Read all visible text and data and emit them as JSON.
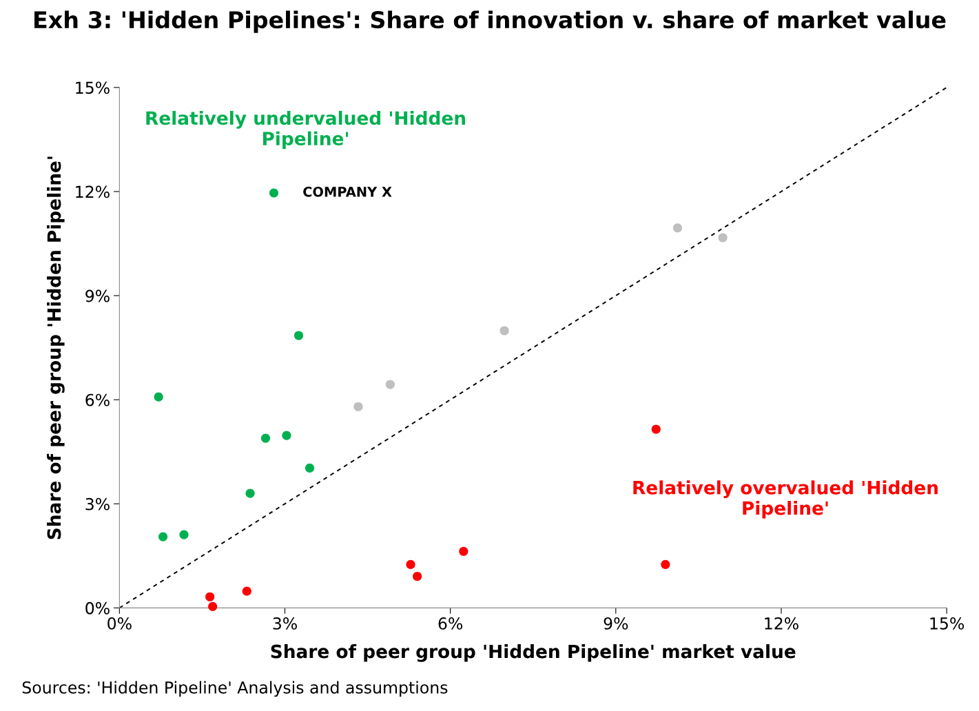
{
  "chart_data": {
    "type": "scatter",
    "title": "Exh 3: 'Hidden Pipelines': Share of innovation v. share of market value",
    "xlabel": "Share of peer group 'Hidden Pipeline' market value",
    "ylabel": "Share of peer group 'Hidden Pipeline'",
    "series": [
      {
        "color": "#00b050",
        "x": [
          2.8,
          3.25,
          0.71,
          2.65,
          3.03,
          3.45,
          2.37,
          0.79,
          1.17
        ],
        "values": [
          11.96,
          7.85,
          6.08,
          4.89,
          4.97,
          4.03,
          3.3,
          2.05,
          2.11
        ]
      },
      {
        "color": "#bfbfbf",
        "x": [
          10.12,
          10.94,
          6.98,
          4.91,
          4.33
        ],
        "values": [
          10.95,
          10.67,
          7.99,
          6.44,
          5.8
        ]
      },
      {
        "color": "#ff0000",
        "x": [
          9.73,
          9.9,
          6.24,
          5.28,
          5.4,
          2.31,
          1.64,
          1.69
        ],
        "values": [
          5.15,
          1.25,
          1.63,
          1.25,
          0.91,
          0.48,
          0.32,
          0.04
        ]
      },
      {
        "type": "line",
        "color": "#000000",
        "line_style": "dashed",
        "marker": "none",
        "x": [
          0,
          15
        ],
        "values": [
          0,
          15
        ]
      }
    ],
    "marker": "circle",
    "xlim": [
      0,
      15
    ],
    "ylim": [
      0,
      15
    ],
    "xticks": [
      {
        "value": 0,
        "label": "0%"
      },
      {
        "value": 3,
        "label": "3%"
      },
      {
        "value": 6,
        "label": "6%"
      },
      {
        "value": 9,
        "label": "9%"
      },
      {
        "value": 12,
        "label": "12%"
      },
      {
        "value": 15,
        "label": "15%"
      }
    ],
    "yticks": [
      {
        "value": 0,
        "label": "0%"
      },
      {
        "value": 3,
        "label": "3%"
      },
      {
        "value": 6,
        "label": "6%"
      },
      {
        "value": 9,
        "label": "9%"
      },
      {
        "value": 12,
        "label": "12%"
      },
      {
        "value": 15,
        "label": "15%"
      }
    ],
    "grid": false,
    "legend": false,
    "annotations": [
      "Relatively undervalued 'Hidden Pipeline'",
      {
        "text": "COMPANY X",
        "x": 2.8,
        "y": 11.96
      },
      "Relatively overvalued 'Hidden Pipeline'",
      "Sources: 'Hidden Pipeline' Analysis and assumptions"
    ]
  }
}
